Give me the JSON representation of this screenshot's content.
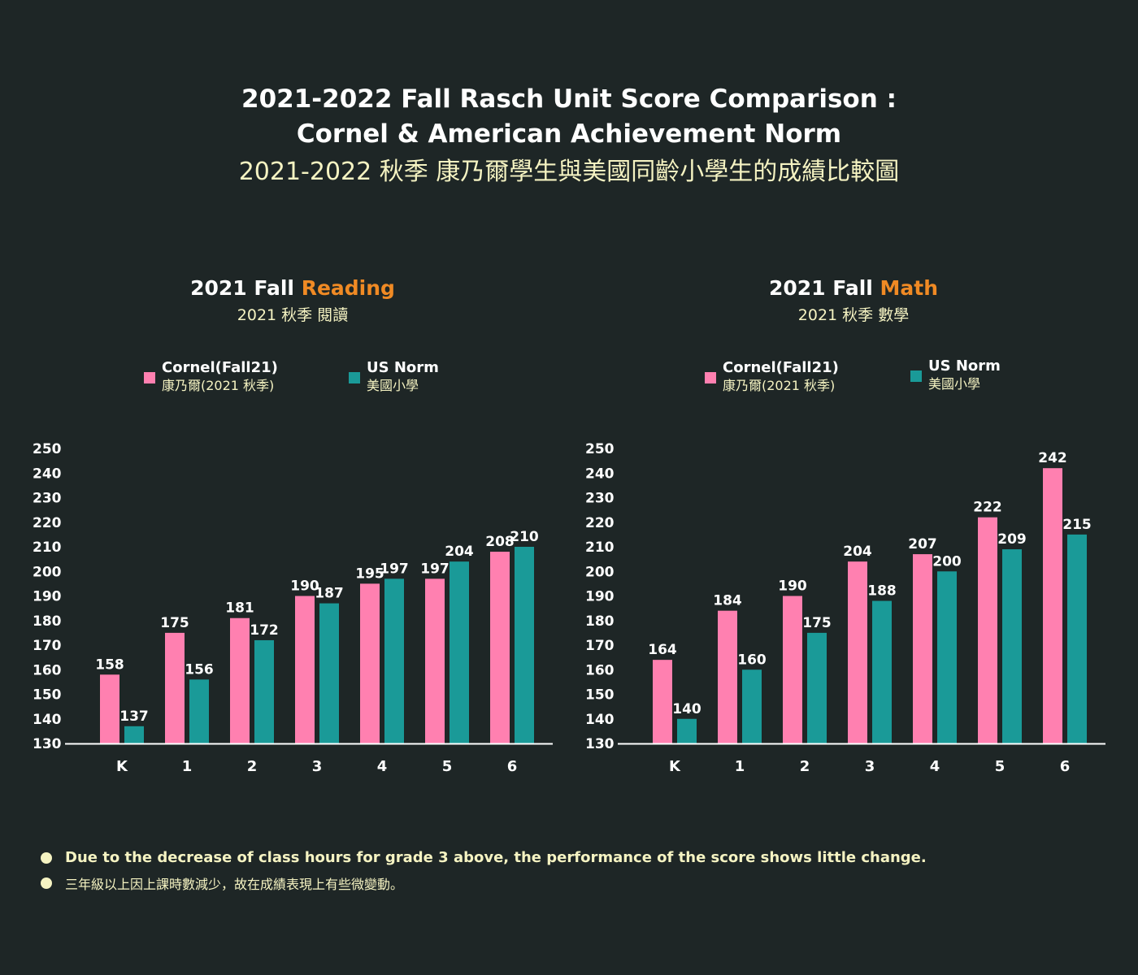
{
  "header": {
    "title_line1": "2021-2022 Fall Rasch Unit Score Comparison :",
    "title_line2": "Cornel & American Achievement Norm",
    "title_zh": "2021-2022 秋季 康乃爾學生與美國同齡小學生的成績比較圖"
  },
  "colors": {
    "background": "#1e2626",
    "cornel": "#ff80b0",
    "us_norm": "#1a9a98",
    "highlight": "#f08a24",
    "subtext": "#f5f3c2"
  },
  "legend": {
    "cornel_en": "Cornel(Fall21)",
    "cornel_zh": "康乃爾(2021 秋季)",
    "us_en": "US Norm",
    "us_zh": "美國小學"
  },
  "reading": {
    "title_prefix": "2021 Fall ",
    "title_subject": "Reading",
    "subtitle": "2021 秋季 閱讀"
  },
  "math": {
    "title_prefix": "2021 Fall ",
    "title_subject": "Math",
    "subtitle": "2021 秋季 數學"
  },
  "chart_data": [
    {
      "type": "bar",
      "title": "2021 Fall Reading",
      "categories": [
        "K",
        "1",
        "2",
        "3",
        "4",
        "5",
        "6"
      ],
      "series": [
        {
          "name": "Cornel(Fall21)",
          "values": [
            158,
            175,
            181,
            190,
            195,
            197,
            208
          ]
        },
        {
          "name": "US Norm",
          "values": [
            137,
            156,
            172,
            187,
            197,
            204,
            210
          ]
        }
      ],
      "ylim": [
        130,
        250
      ],
      "yticks": [
        130,
        140,
        150,
        160,
        170,
        180,
        190,
        200,
        210,
        220,
        230,
        240,
        250
      ],
      "grid": false,
      "legend": "top"
    },
    {
      "type": "bar",
      "title": "2021 Fall Math",
      "categories": [
        "K",
        "1",
        "2",
        "3",
        "4",
        "5",
        "6"
      ],
      "series": [
        {
          "name": "Cornel(Fall21)",
          "values": [
            164,
            184,
            190,
            204,
            207,
            222,
            242
          ]
        },
        {
          "name": "US Norm",
          "values": [
            140,
            160,
            175,
            188,
            200,
            209,
            215
          ]
        }
      ],
      "ylim": [
        130,
        250
      ],
      "yticks": [
        130,
        140,
        150,
        160,
        170,
        180,
        190,
        200,
        210,
        220,
        230,
        240,
        250
      ],
      "grid": false,
      "legend": "top"
    }
  ],
  "notes": [
    "Due to the decrease of class hours for grade 3 above, the performance of the score shows little change.",
    "三年級以上因上課時數減少，故在成績表現上有些微變動。"
  ]
}
